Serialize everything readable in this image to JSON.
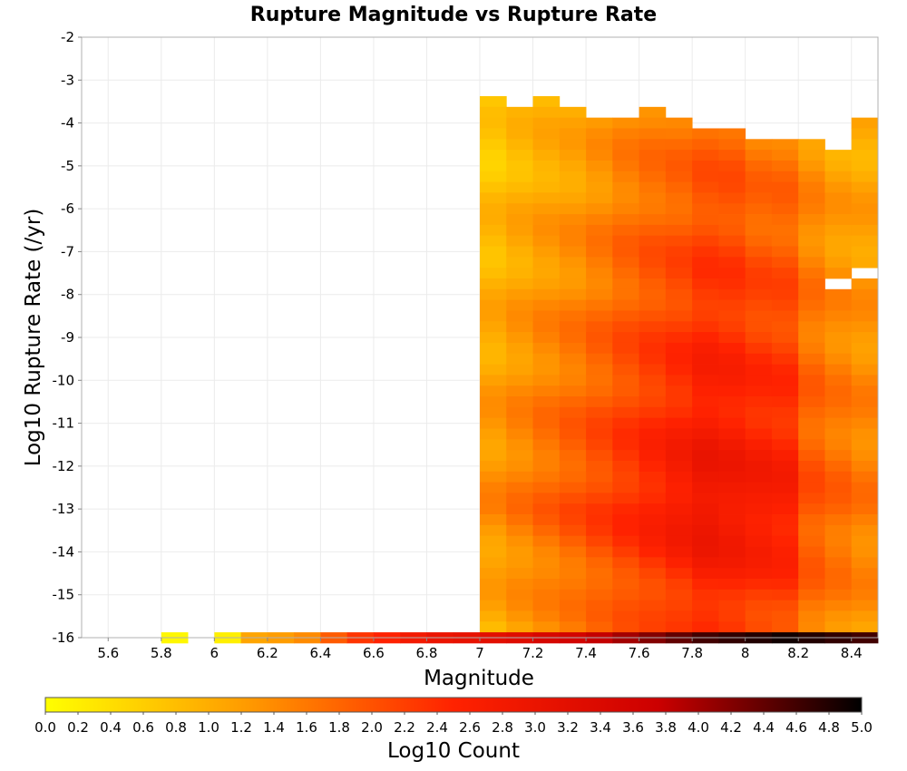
{
  "chart_data": {
    "type": "heatmap",
    "title": "Rupture Magnitude vs Rupture Rate",
    "xlabel": "Magnitude",
    "ylabel": "Log10 Rupture Rate (/yr)",
    "xlim": [
      5.5,
      8.5
    ],
    "ylim": [
      -16,
      -2
    ],
    "x_ticks": [
      "5.6",
      "5.8",
      "6",
      "6.2",
      "6.4",
      "6.6",
      "6.8",
      "7",
      "7.2",
      "7.4",
      "7.6",
      "7.8",
      "8",
      "8.2",
      "8.4"
    ],
    "y_ticks": [
      "-2",
      "-3",
      "-4",
      "-5",
      "-6",
      "-7",
      "-8",
      "-9",
      "-10",
      "-11",
      "-12",
      "-13",
      "-14",
      "-15",
      "-16"
    ],
    "grid": true,
    "mag_bin_width": 0.1,
    "rate_bin_width": 0.25,
    "bottom_row": {
      "log10_rate": -16,
      "magnitudes": [
        5.85,
        6.05,
        6.15,
        6.25,
        6.35,
        6.45,
        6.55,
        6.65,
        6.75,
        6.85,
        6.95
      ],
      "values": [
        0.1,
        0.2,
        1.1,
        1.2,
        1.4,
        1.9,
        2.3,
        2.5,
        2.8,
        3.0,
        3.1
      ]
    },
    "mag_bins": [
      7.05,
      7.15,
      7.25,
      7.35,
      7.45,
      7.55,
      7.65,
      7.75,
      7.85,
      7.95,
      8.05,
      8.15,
      8.25,
      8.35,
      8.45
    ],
    "top_log10_rate": [
      -3.5,
      -3.75,
      -3.5,
      -3.75,
      -4.0,
      -4.0,
      -3.75,
      -4.0,
      -4.25,
      -4.25,
      -4.5,
      -4.5,
      -4.5,
      -4.75,
      -4.0
    ],
    "min_value_by_mag": [
      0.6,
      0.8,
      0.9,
      1.0,
      1.2,
      1.4,
      1.5,
      1.6,
      1.8,
      1.8,
      1.6,
      1.6,
      1.3,
      1.1,
      1.0
    ],
    "max_value_by_mag": [
      1.4,
      1.6,
      1.8,
      2.0,
      2.2,
      2.4,
      2.6,
      2.8,
      3.0,
      2.9,
      2.8,
      2.7,
      2.0,
      1.8,
      1.6
    ],
    "peak_log10_rate_by_mag": [
      -13,
      -13,
      -13,
      -13,
      -13,
      -13,
      -13,
      -13,
      -13,
      -13,
      -13,
      -13,
      -13,
      -13,
      -13
    ],
    "bottom_row_values_by_mag": [
      3.2,
      3.3,
      3.5,
      3.6,
      3.8,
      4.0,
      4.2,
      4.4,
      4.6,
      4.7,
      4.8,
      4.9,
      4.8,
      4.7,
      4.6
    ],
    "missing_cells": [
      {
        "mag": 8.35,
        "log10_rate": -7.75
      },
      {
        "mag": 8.45,
        "log10_rate": -7.5
      }
    ],
    "colorbar": {
      "label": "Log10 Count",
      "range": [
        0.0,
        5.0
      ],
      "ticks": [
        "0.0",
        "0.2",
        "0.4",
        "0.6",
        "0.8",
        "1.0",
        "1.2",
        "1.4",
        "1.6",
        "1.8",
        "2.0",
        "2.2",
        "2.4",
        "2.6",
        "2.8",
        "3.0",
        "3.2",
        "3.4",
        "3.6",
        "3.8",
        "4.0",
        "4.2",
        "4.4",
        "4.6",
        "4.8",
        "5.0"
      ],
      "colors": [
        "#ffff00",
        "#ff9900",
        "#ff2200",
        "#cc0000",
        "#000000"
      ]
    }
  }
}
